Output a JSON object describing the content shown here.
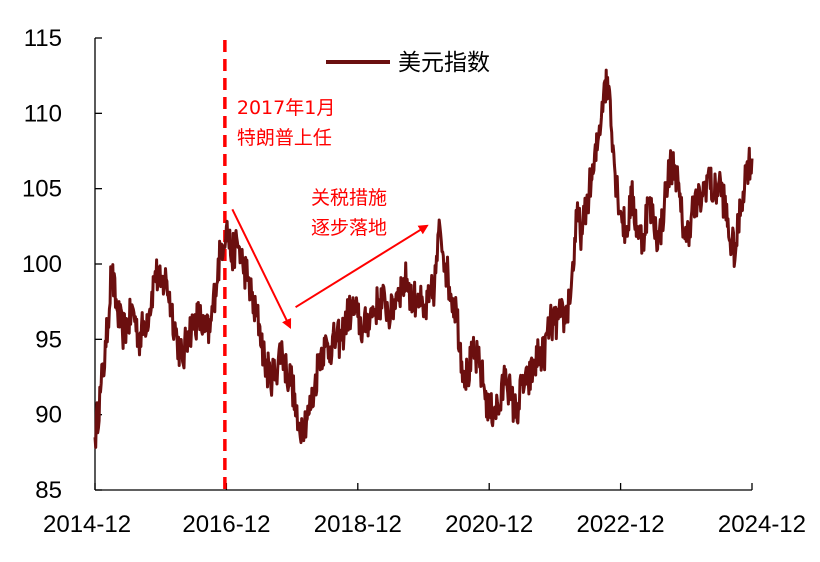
{
  "chart_data": {
    "type": "line",
    "title": "",
    "xlabel": "",
    "ylabel": "",
    "ylim": [
      85,
      115
    ],
    "yticks": [
      "85",
      "90",
      "95",
      "100",
      "105",
      "110",
      "115"
    ],
    "xticks": [
      "2014-12",
      "2016-12",
      "2018-12",
      "2020-12",
      "2022-12",
      "2024-12"
    ],
    "xrange": [
      "2014-12",
      "2024-12"
    ],
    "grid": false,
    "legend": {
      "position": "top-center",
      "entries": [
        "美元指数"
      ]
    },
    "series": [
      {
        "name": "美元指数",
        "color": "#6b0f0f",
        "points": [
          [
            "2014-12",
            88.5
          ],
          [
            "2015-01",
            91.5
          ],
          [
            "2015-02",
            94.5
          ],
          [
            "2015-03",
            99.5
          ],
          [
            "2015-04",
            97.0
          ],
          [
            "2015-05",
            95.5
          ],
          [
            "2015-06",
            96.0
          ],
          [
            "2015-07",
            97.0
          ],
          [
            "2015-08",
            95.0
          ],
          [
            "2015-09",
            96.0
          ],
          [
            "2015-10",
            97.0
          ],
          [
            "2015-11",
            99.5
          ],
          [
            "2015-12",
            98.5
          ],
          [
            "2016-01",
            99.0
          ],
          [
            "2016-02",
            97.0
          ],
          [
            "2016-03",
            95.0
          ],
          [
            "2016-04",
            93.5
          ],
          [
            "2016-05",
            95.5
          ],
          [
            "2016-06",
            96.0
          ],
          [
            "2016-07",
            96.5
          ],
          [
            "2016-08",
            95.5
          ],
          [
            "2016-09",
            95.5
          ],
          [
            "2016-10",
            98.5
          ],
          [
            "2016-11",
            101.0
          ],
          [
            "2016-12",
            102.5
          ],
          [
            "2017-01",
            100.5
          ],
          [
            "2017-02",
            101.5
          ],
          [
            "2017-03",
            100.0
          ],
          [
            "2017-04",
            99.0
          ],
          [
            "2017-05",
            97.0
          ],
          [
            "2017-06",
            96.0
          ],
          [
            "2017-07",
            93.5
          ],
          [
            "2017-08",
            92.5
          ],
          [
            "2017-09",
            92.8
          ],
          [
            "2017-10",
            94.5
          ],
          [
            "2017-11",
            92.8
          ],
          [
            "2017-12",
            92.2
          ],
          [
            "2018-01",
            89.0
          ],
          [
            "2018-02",
            89.5
          ],
          [
            "2018-03",
            90.0
          ],
          [
            "2018-04",
            91.5
          ],
          [
            "2018-05",
            94.0
          ],
          [
            "2018-06",
            94.5
          ],
          [
            "2018-07",
            94.5
          ],
          [
            "2018-08",
            95.0
          ],
          [
            "2018-09",
            95.0
          ],
          [
            "2018-10",
            96.5
          ],
          [
            "2018-11",
            97.0
          ],
          [
            "2018-12",
            96.5
          ],
          [
            "2019-01",
            95.5
          ],
          [
            "2019-02",
            96.5
          ],
          [
            "2019-03",
            97.0
          ],
          [
            "2019-04",
            97.5
          ],
          [
            "2019-05",
            97.5
          ],
          [
            "2019-06",
            96.5
          ],
          [
            "2019-07",
            98.0
          ],
          [
            "2019-08",
            98.5
          ],
          [
            "2019-09",
            99.0
          ],
          [
            "2019-10",
            97.5
          ],
          [
            "2019-11",
            98.0
          ],
          [
            "2019-12",
            96.5
          ],
          [
            "2020-01",
            97.5
          ],
          [
            "2020-02",
            98.5
          ],
          [
            "2020-03",
            102.5
          ],
          [
            "2020-04",
            100.0
          ],
          [
            "2020-05",
            98.0
          ],
          [
            "2020-06",
            97.0
          ],
          [
            "2020-07",
            93.5
          ],
          [
            "2020-08",
            92.5
          ],
          [
            "2020-09",
            94.0
          ],
          [
            "2020-10",
            93.5
          ],
          [
            "2020-11",
            92.0
          ],
          [
            "2020-12",
            90.0
          ],
          [
            "2021-01",
            90.5
          ],
          [
            "2021-02",
            90.5
          ],
          [
            "2021-03",
            93.0
          ],
          [
            "2021-04",
            91.0
          ],
          [
            "2021-05",
            90.0
          ],
          [
            "2021-06",
            92.0
          ],
          [
            "2021-07",
            92.0
          ],
          [
            "2021-08",
            93.0
          ],
          [
            "2021-09",
            94.0
          ],
          [
            "2021-10",
            94.0
          ],
          [
            "2021-11",
            96.0
          ],
          [
            "2021-12",
            96.0
          ],
          [
            "2022-01",
            96.5
          ],
          [
            "2022-02",
            96.5
          ],
          [
            "2022-03",
            98.5
          ],
          [
            "2022-04",
            103.0
          ],
          [
            "2022-05",
            102.0
          ],
          [
            "2022-06",
            104.5
          ],
          [
            "2022-07",
            106.0
          ],
          [
            "2022-08",
            108.5
          ],
          [
            "2022-09",
            112.0
          ],
          [
            "2022-10",
            111.5
          ],
          [
            "2022-11",
            106.0
          ],
          [
            "2022-12",
            103.5
          ],
          [
            "2023-01",
            102.0
          ],
          [
            "2023-02",
            104.5
          ],
          [
            "2023-03",
            102.5
          ],
          [
            "2023-04",
            101.5
          ],
          [
            "2023-05",
            104.0
          ],
          [
            "2023-06",
            103.0
          ],
          [
            "2023-07",
            101.5
          ],
          [
            "2023-08",
            104.0
          ],
          [
            "2023-09",
            106.5
          ],
          [
            "2023-10",
            106.5
          ],
          [
            "2023-11",
            103.5
          ],
          [
            "2023-12",
            101.5
          ],
          [
            "2024-01",
            103.5
          ],
          [
            "2024-02",
            104.0
          ],
          [
            "2024-03",
            104.5
          ],
          [
            "2024-04",
            106.0
          ],
          [
            "2024-05",
            104.5
          ],
          [
            "2024-06",
            105.5
          ],
          [
            "2024-07",
            104.0
          ],
          [
            "2024-08",
            101.5
          ],
          [
            "2024-09",
            100.8
          ],
          [
            "2024-10",
            104.0
          ],
          [
            "2024-11",
            106.5
          ],
          [
            "2024-12",
            107.0
          ]
        ]
      }
    ],
    "annotations": [
      {
        "type": "vline",
        "x": "2017-01",
        "color": "#ff0000",
        "style": "dashed",
        "lines": [
          "2017年1月",
          "特朗普上任"
        ]
      },
      {
        "type": "arrow",
        "from": [
          "2017-02",
          103.5
        ],
        "to": [
          "2017-12",
          96.2
        ],
        "color": "#ff0000"
      },
      {
        "type": "arrow",
        "from": [
          "2018-01",
          97.0
        ],
        "to": [
          "2020-01",
          102.8
        ],
        "color": "#ff0000",
        "lines": [
          "关税措施",
          "逐步落地"
        ]
      }
    ]
  }
}
